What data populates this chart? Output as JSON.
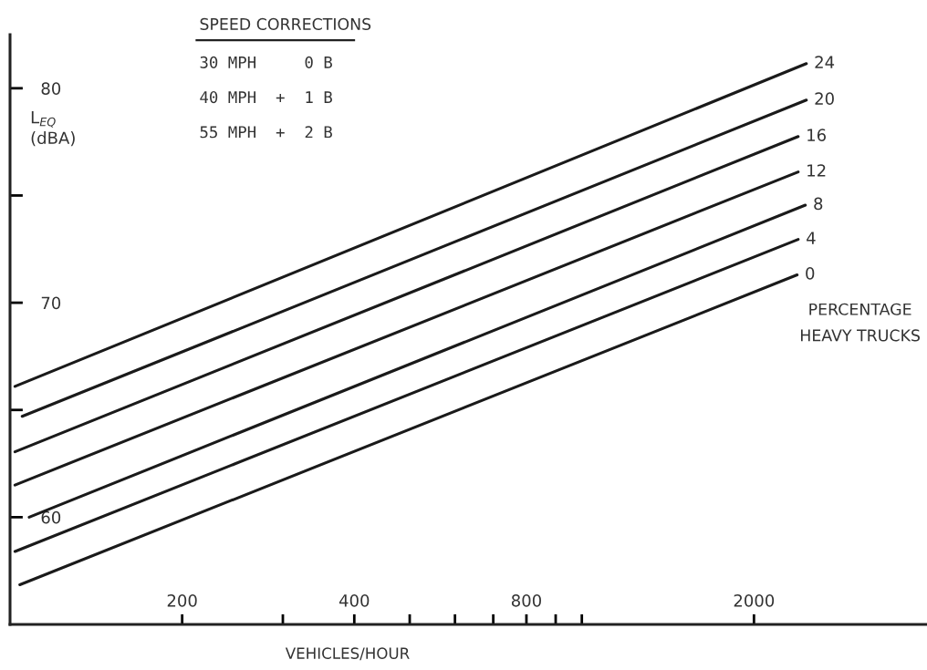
{
  "chart_data": {
    "type": "line",
    "log": "x",
    "xlabel": "VEHICLES/HOUR",
    "ylabel": "L$_{EQ}$\n(dBA)",
    "legend_title": "PERCENTAGE\nHEAVY TRUCKS",
    "annotations": [
      "SPEED CORRECTIONS",
      "30 MPH     0 B",
      "40 MPH  +  1 B",
      "55 MPH  +  2 B"
    ],
    "xlim": [
      100,
      4000
    ],
    "ylim": [
      55,
      82.5
    ],
    "xticks": [
      200,
      {
        "value": 300,
        "label": null
      },
      400,
      {
        "value": 500,
        "label": null
      },
      {
        "value": 600,
        "label": null
      },
      {
        "value": 700,
        "label": null
      },
      800,
      {
        "value": 900,
        "label": null
      },
      {
        "value": 1000,
        "label": null
      },
      2000
    ],
    "yticks": [
      60,
      {
        "value": 65,
        "label": null
      },
      70,
      {
        "value": 75,
        "label": null
      },
      80
    ],
    "grid": false,
    "legend": false,
    "marker": "none",
    "line_style": "solid",
    "series": [
      {
        "name": "24",
        "color": "#1a1a1a",
        "x": [
          102,
          2470
        ],
        "values": [
          66.1,
          81.15
        ]
      },
      {
        "name": "20",
        "color": "#1a1a1a",
        "x": [
          105,
          2470
        ],
        "values": [
          64.7,
          79.45
        ]
      },
      {
        "name": "16",
        "color": "#1a1a1a",
        "x": [
          102,
          2390
        ],
        "values": [
          63.05,
          77.75
        ]
      },
      {
        "name": "12",
        "color": "#1a1a1a",
        "x": [
          102,
          2390
        ],
        "values": [
          61.5,
          76.1
        ]
      },
      {
        "name": "8",
        "color": "#1a1a1a",
        "x": [
          108,
          2460
        ],
        "values": [
          60.0,
          74.55
        ]
      },
      {
        "name": "4",
        "color": "#1a1a1a",
        "x": [
          102,
          2390
        ],
        "values": [
          58.4,
          72.95
        ]
      },
      {
        "name": "0",
        "color": "#1a1a1a",
        "x": [
          104,
          2380
        ],
        "values": [
          56.85,
          71.3
        ]
      }
    ]
  }
}
